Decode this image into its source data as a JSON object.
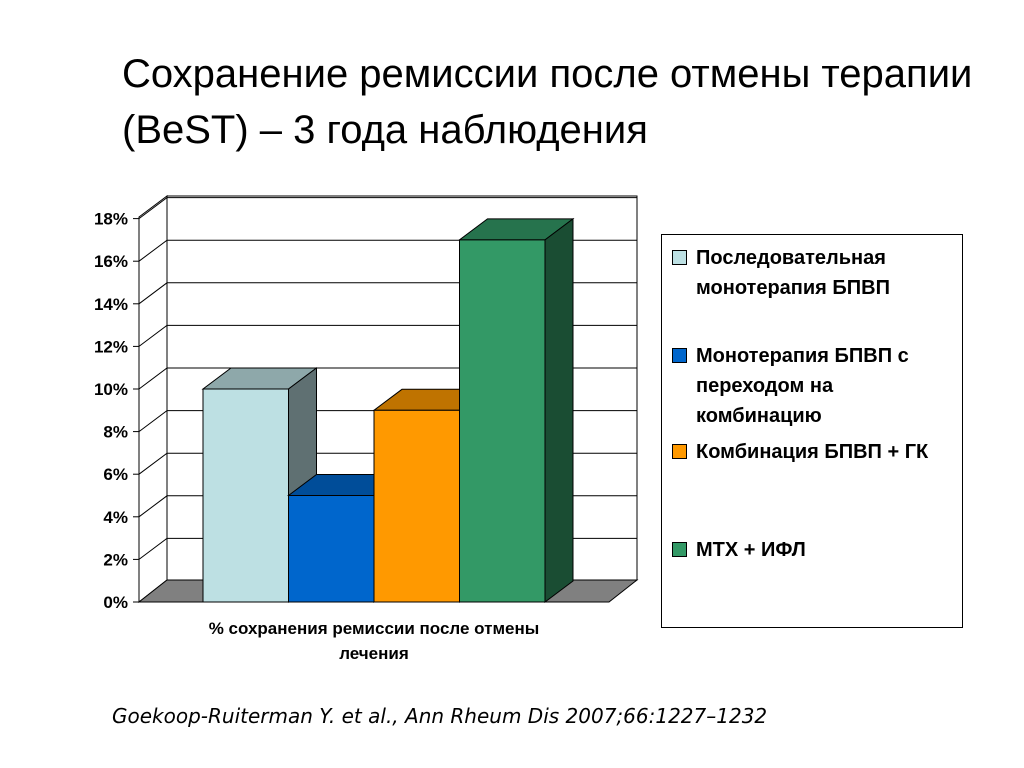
{
  "page": {
    "title": "Сохранение ремиссии после отмены терапии (BeST) – 3 года наблюдения",
    "citation": "Goekoop-Ruiterman Y. et al., Ann Rheum Dis 2007;66:1227–1232"
  },
  "chart_data": {
    "type": "bar",
    "title": "",
    "xlabel": "% сохранения ремиссии после отмены лечения",
    "ylabel": "",
    "ylim": [
      0,
      18
    ],
    "yticks": [
      "0%",
      "2%",
      "4%",
      "6%",
      "8%",
      "10%",
      "12%",
      "14%",
      "16%",
      "18%"
    ],
    "grid": true,
    "legend_position": "right",
    "categories": [
      "% сохранения ремиссии после отмены лечения"
    ],
    "series": [
      {
        "name": "Последовательная монотерапия БПВП",
        "values": [
          10
        ],
        "color": "#bde0e3"
      },
      {
        "name": "Монотерапия БПВП с переходом на комбинацию",
        "values": [
          5
        ],
        "color": "#0066cc"
      },
      {
        "name": "Комбинация БПВП + ГК",
        "values": [
          9
        ],
        "color": "#ff9900"
      },
      {
        "name": "МТХ + ИФЛ",
        "values": [
          17
        ],
        "color": "#339966"
      }
    ]
  }
}
